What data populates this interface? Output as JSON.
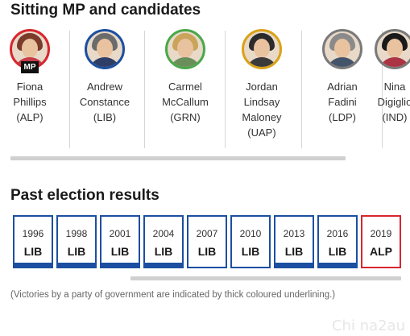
{
  "candidates_section": {
    "heading": "Sitting MP and candidates",
    "candidates": [
      {
        "name": "Fiona Phillips (ALP)",
        "lines": [
          "Fiona",
          "Phillips",
          "(ALP)"
        ],
        "ring_color": "#d8262e",
        "badge": "MP",
        "hair": "#7a3b2a",
        "shirt": "#c63b48"
      },
      {
        "name": "Andrew Constance (LIB)",
        "lines": [
          "Andrew",
          "Constance",
          "(LIB)"
        ],
        "ring_color": "#1c4fa1",
        "hair": "#6b6b6b",
        "shirt": "#2f3e66"
      },
      {
        "name": "Carmel McCallum (GRN)",
        "lines": [
          "Carmel",
          "McCallum",
          "(GRN)"
        ],
        "ring_color": "#4aa84a",
        "hair": "#c9a45a",
        "shirt": "#6a8f5a"
      },
      {
        "name": "Jordan Lindsay Maloney (UAP)",
        "lines": [
          "Jordan",
          "Lindsay",
          "Maloney",
          "(UAP)"
        ],
        "ring_color": "#d9a21a",
        "hair": "#2b2b2b",
        "shirt": "#3a3a3a"
      },
      {
        "name": "Adrian Fadini (LDP)",
        "lines": [
          "Adrian",
          "Fadini",
          "(LDP)"
        ],
        "ring_color": "#7a7a7a",
        "hair": "#8a8a8a",
        "shirt": "#44556a"
      },
      {
        "name": "Nina Digiglio (IND)",
        "lines": [
          "Nina",
          "Digiglio",
          "(IND)"
        ],
        "ring_color": "#7a7a7a",
        "hair": "#1a1a1a",
        "shirt": "#aa3344"
      }
    ]
  },
  "results_section": {
    "heading": "Past election results",
    "results": [
      {
        "year": "1996",
        "party": "LIB",
        "color": "#1c4fa1",
        "government": true
      },
      {
        "year": "1998",
        "party": "LIB",
        "color": "#1c4fa1",
        "government": true
      },
      {
        "year": "2001",
        "party": "LIB",
        "color": "#1c4fa1",
        "government": true
      },
      {
        "year": "2004",
        "party": "LIB",
        "color": "#1c4fa1",
        "government": true
      },
      {
        "year": "2007",
        "party": "LIB",
        "color": "#1c4fa1",
        "government": false
      },
      {
        "year": "2010",
        "party": "LIB",
        "color": "#1c4fa1",
        "government": false
      },
      {
        "year": "2013",
        "party": "LIB",
        "color": "#1c4fa1",
        "government": true
      },
      {
        "year": "2016",
        "party": "LIB",
        "color": "#1c4fa1",
        "government": true
      },
      {
        "year": "2019",
        "party": "ALP",
        "color": "#d8262e",
        "government": false
      }
    ]
  },
  "footnote": "(Victories by a party of government are indicated by thick coloured underlining.)",
  "watermark": "Chi na2au"
}
